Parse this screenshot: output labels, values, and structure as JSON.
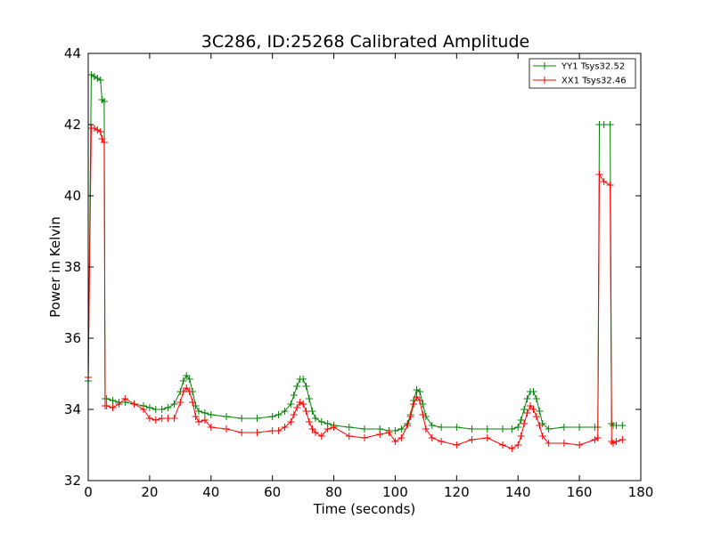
{
  "chart_data": {
    "type": "line",
    "title": "3C286, ID:25268 Calibrated Amplitude",
    "xlabel": "Time (seconds)",
    "ylabel": "Power in Kelvin",
    "xlim": [
      0,
      180
    ],
    "ylim": [
      32,
      44
    ],
    "xticks": [
      "0",
      "20",
      "40",
      "60",
      "80",
      "100",
      "120",
      "140",
      "160",
      "180"
    ],
    "yticks": [
      "32",
      "34",
      "36",
      "38",
      "40",
      "42",
      "44"
    ],
    "grid": false,
    "legend_position": "top-right",
    "series": [
      {
        "name": "YY1 Tsys32.52",
        "color": "#008000",
        "x": [
          0,
          1,
          2,
          3,
          4,
          4.5,
          5.2,
          5.5,
          6,
          8,
          10,
          12,
          15,
          18,
          20,
          22,
          24,
          26,
          28,
          30,
          31,
          32,
          33,
          34,
          35,
          36,
          38,
          40,
          45,
          50,
          55,
          60,
          62,
          64,
          66,
          67,
          68,
          69,
          70,
          71,
          72,
          73,
          74,
          76,
          78,
          80,
          85,
          90,
          95,
          98,
          100,
          102,
          104,
          105,
          106,
          107,
          108,
          109,
          110,
          112,
          115,
          120,
          125,
          130,
          135,
          138,
          140,
          141,
          142,
          143,
          144,
          145,
          146,
          147,
          148,
          150,
          155,
          160,
          165,
          166,
          166.5,
          168,
          170,
          170.5,
          171,
          172,
          174
        ],
        "y": [
          34.8,
          43.4,
          43.35,
          43.3,
          43.25,
          42.7,
          42.65,
          34.3,
          34.3,
          34.25,
          34.2,
          34.2,
          34.15,
          34.1,
          34.05,
          34.0,
          34.0,
          34.05,
          34.15,
          34.5,
          34.8,
          34.95,
          34.85,
          34.5,
          34.1,
          33.95,
          33.9,
          33.85,
          33.8,
          33.75,
          33.75,
          33.8,
          33.85,
          33.95,
          34.15,
          34.4,
          34.65,
          34.85,
          34.85,
          34.65,
          34.3,
          33.95,
          33.75,
          33.65,
          33.6,
          33.55,
          33.5,
          33.45,
          33.45,
          33.4,
          33.4,
          33.45,
          33.6,
          33.85,
          34.25,
          34.55,
          34.5,
          34.15,
          33.8,
          33.55,
          33.5,
          33.5,
          33.45,
          33.45,
          33.45,
          33.45,
          33.5,
          33.7,
          34.0,
          34.3,
          34.5,
          34.5,
          34.3,
          33.95,
          33.6,
          33.45,
          33.5,
          33.5,
          33.5,
          33.5,
          42.0,
          42.0,
          42.0,
          33.6,
          33.55,
          33.55,
          33.55
        ]
      },
      {
        "name": "XX1 Tsys32.46",
        "color": "#ff0000",
        "x": [
          0,
          1,
          2,
          3,
          4,
          4.5,
          5.2,
          5.5,
          6,
          8,
          10,
          12,
          15,
          18,
          20,
          22,
          24,
          26,
          28,
          30,
          31,
          32,
          33,
          34,
          35,
          36,
          38,
          40,
          45,
          50,
          55,
          60,
          62,
          64,
          66,
          67,
          68,
          69,
          70,
          71,
          72,
          73,
          74,
          76,
          78,
          80,
          85,
          90,
          95,
          98,
          100,
          102,
          104,
          105,
          106,
          107,
          108,
          109,
          110,
          112,
          115,
          120,
          125,
          130,
          135,
          138,
          140,
          141,
          142,
          143,
          144,
          145,
          146,
          147,
          148,
          150,
          155,
          160,
          165,
          166,
          166.5,
          168,
          170,
          170.5,
          171,
          172,
          174
        ],
        "y": [
          34.9,
          41.9,
          41.9,
          41.85,
          41.8,
          41.6,
          41.5,
          34.1,
          34.1,
          34.05,
          34.15,
          34.3,
          34.15,
          34.0,
          33.75,
          33.7,
          33.75,
          33.75,
          33.75,
          34.2,
          34.5,
          34.6,
          34.5,
          34.2,
          33.8,
          33.65,
          33.7,
          33.5,
          33.45,
          33.35,
          33.35,
          33.4,
          33.4,
          33.5,
          33.65,
          33.85,
          34.05,
          34.2,
          34.15,
          33.95,
          33.65,
          33.45,
          33.35,
          33.25,
          33.45,
          33.5,
          33.25,
          33.2,
          33.3,
          33.35,
          33.1,
          33.2,
          33.55,
          33.8,
          34.15,
          34.35,
          34.25,
          33.85,
          33.45,
          33.2,
          33.1,
          33.0,
          33.15,
          33.2,
          33.0,
          32.9,
          33.0,
          33.25,
          33.6,
          33.9,
          34.1,
          34.0,
          33.8,
          33.55,
          33.25,
          33.05,
          33.05,
          33.0,
          33.15,
          33.2,
          40.6,
          40.4,
          40.3,
          33.1,
          33.05,
          33.1,
          33.15
        ]
      }
    ]
  }
}
